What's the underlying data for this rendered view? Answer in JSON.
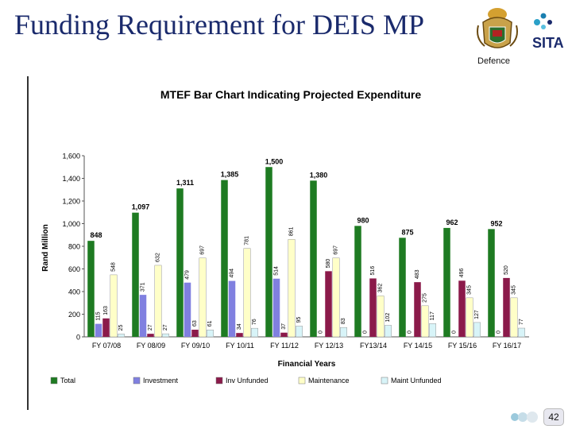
{
  "slide": {
    "title": "Funding Requirement for DEIS MP",
    "dept_label": "Defence",
    "sita_label": "SITA",
    "page_number": "42"
  },
  "chart_data": {
    "type": "bar",
    "title": "MTEF Bar Chart Indicating Projected Expenditure",
    "xlabel": "Financial Years",
    "ylabel": "Rand Million",
    "ylim": [
      0,
      1600
    ],
    "yticks": [
      "0",
      "200",
      "400",
      "600",
      "800",
      "1,000",
      "1,200",
      "1,400",
      "1,600"
    ],
    "categories": [
      "FY 07/08",
      "FY 08/09",
      "FY 09/10",
      "FY 10/11",
      "FY 11/12",
      "FY 12/13",
      "FY13/14",
      "FY 14/15",
      "FY 15/16",
      "FY 16/17"
    ],
    "legend_position": "bottom",
    "grid": false,
    "series": [
      {
        "name": "Total",
        "color": "#1e7b22",
        "values": [
          848,
          1097,
          1311,
          1385,
          1500,
          1380,
          980,
          875,
          962,
          952
        ],
        "labels": [
          "848",
          "1,097",
          "1,311",
          "1,385",
          "1,500",
          "1,380",
          "980",
          "875",
          "962",
          "952"
        ]
      },
      {
        "name": "Investment",
        "color": "#8080e0",
        "values": [
          115,
          371,
          479,
          494,
          514,
          0,
          0,
          0,
          0,
          0
        ],
        "labels": [
          "115",
          "371",
          "479",
          "494",
          "514",
          "0",
          "0",
          "0",
          "0",
          "0"
        ]
      },
      {
        "name": "Inv Unfunded",
        "color": "#8b1a4a",
        "values": [
          163,
          27,
          63,
          34,
          37,
          580,
          516,
          483,
          496,
          520
        ],
        "labels": [
          "163",
          "27",
          "63",
          "34",
          "37",
          "580",
          "516",
          "483",
          "496",
          "520"
        ]
      },
      {
        "name": "Maintenance",
        "color": "#ffffc8",
        "values": [
          548,
          632,
          697,
          781,
          861,
          697,
          362,
          275,
          345,
          345
        ],
        "labels": [
          "548",
          "632",
          "697",
          "781",
          "861",
          "697",
          "362",
          "275",
          "345",
          "345"
        ]
      },
      {
        "name": "Maint Unfunded",
        "color": "#d8f4f8",
        "values": [
          25,
          27,
          61,
          76,
          95,
          83,
          102,
          117,
          127,
          77
        ],
        "labels": [
          "25",
          "27",
          "61",
          "76",
          "95",
          "83",
          "102",
          "117",
          "127",
          "77"
        ]
      }
    ]
  }
}
